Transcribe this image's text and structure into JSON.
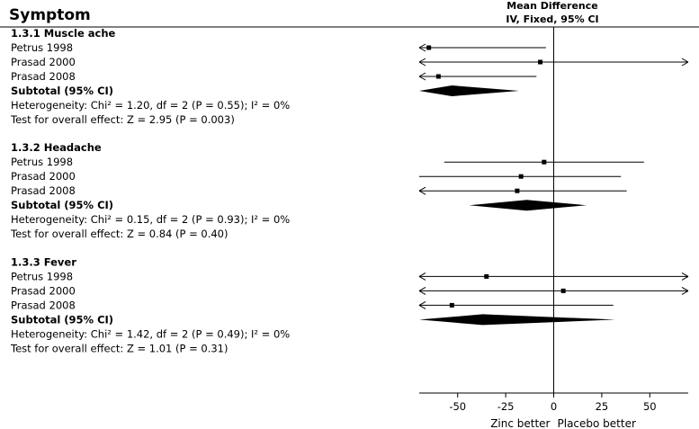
{
  "header": {
    "column_label": "Symptom",
    "effect_title_line1": "Mean Difference",
    "effect_title_line2": "IV, Fixed, 95% CI"
  },
  "chart_data": {
    "type": "forest",
    "xlim": [
      -70,
      70
    ],
    "ticks": [
      -50,
      -25,
      0,
      25,
      50
    ],
    "tick_labels": [
      "-50",
      "-25",
      "0",
      "25",
      "50"
    ],
    "left_label": "Zinc better",
    "right_label": "Placebo better",
    "groups": [
      {
        "title": "1.3.1 Muscle ache",
        "studies": [
          {
            "name": "Petrus 1998",
            "md": -65,
            "lo": -70,
            "hi": -4,
            "arrow_left": true,
            "arrow_right": false
          },
          {
            "name": "Prasad 2000",
            "md": -7,
            "lo": -70,
            "hi": 70,
            "arrow_left": true,
            "arrow_right": true
          },
          {
            "name": "Prasad 2008",
            "md": -60,
            "lo": -70,
            "hi": -9,
            "arrow_left": true,
            "arrow_right": false
          }
        ],
        "subtotal_label": "Subtotal (95% CI)",
        "subtotal": {
          "md": -53,
          "lo": -70,
          "hi": -18
        },
        "heterogeneity": "Heterogeneity: Chi² = 1.20, df = 2 (P = 0.55); I² = 0%",
        "overall": "Test for overall effect: Z = 2.95 (P = 0.003)"
      },
      {
        "title": "1.3.2 Headache",
        "studies": [
          {
            "name": "Petrus 1998",
            "md": -5,
            "lo": -57,
            "hi": 47,
            "arrow_left": false,
            "arrow_right": false
          },
          {
            "name": "Prasad 2000",
            "md": -17,
            "lo": -70,
            "hi": 35,
            "arrow_left": false,
            "arrow_right": false
          },
          {
            "name": "Prasad 2008",
            "md": -19,
            "lo": -70,
            "hi": 38,
            "arrow_left": true,
            "arrow_right": false
          }
        ],
        "subtotal_label": "Subtotal (95% CI)",
        "subtotal": {
          "md": -14,
          "lo": -44,
          "hi": 17
        },
        "heterogeneity": "Heterogeneity: Chi² = 0.15, df = 2 (P = 0.93); I² = 0%",
        "overall": "Test for overall effect: Z = 0.84 (P = 0.40)"
      },
      {
        "title": "1.3.3 Fever",
        "studies": [
          {
            "name": "Petrus 1998",
            "md": -35,
            "lo": -70,
            "hi": 70,
            "arrow_left": true,
            "arrow_right": true
          },
          {
            "name": "Prasad 2000",
            "md": 5,
            "lo": -70,
            "hi": 70,
            "arrow_left": true,
            "arrow_right": true
          },
          {
            "name": "Prasad 2008",
            "md": -53,
            "lo": -70,
            "hi": 31,
            "arrow_left": true,
            "arrow_right": false
          }
        ],
        "subtotal_label": "Subtotal (95% CI)",
        "subtotal": {
          "md": -37,
          "lo": -70,
          "hi": 32
        },
        "heterogeneity": "Heterogeneity: Chi² = 1.42, df = 2 (P = 0.49); I² = 0%",
        "overall": "Test for overall effect: Z = 1.01 (P = 0.31)"
      }
    ]
  }
}
